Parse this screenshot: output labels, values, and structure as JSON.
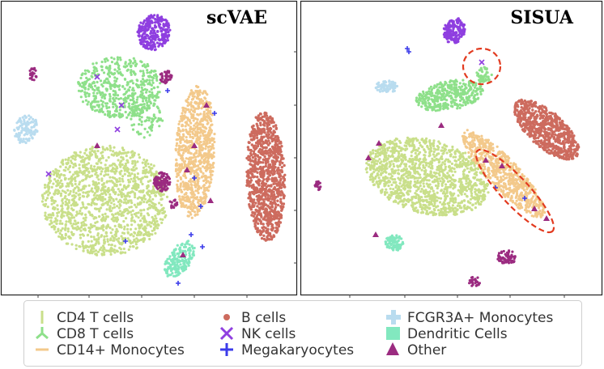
{
  "chart_data": {
    "type": "scatter",
    "panels": [
      {
        "title": "scVAE"
      },
      {
        "title": "SISUA"
      }
    ],
    "legend": {
      "placement": "bottom",
      "entries": [
        {
          "label": "CD4 T cells",
          "color": "#c9df8a",
          "marker": "vline"
        },
        {
          "label": "CD8 T cells",
          "color": "#8ee08a",
          "marker": "tri"
        },
        {
          "label": "CD14+ Monocytes",
          "color": "#f3c98b",
          "marker": "hline"
        },
        {
          "label": "B cells",
          "color": "#cd6b5e",
          "marker": "dot"
        },
        {
          "label": "NK cells",
          "color": "#8f3fe0",
          "marker": "x"
        },
        {
          "label": "Megakaryocytes",
          "color": "#3b3bea",
          "marker": "plus"
        },
        {
          "label": "FCGR3A+ Monocytes",
          "color": "#b9dcef",
          "marker": "pluswide"
        },
        {
          "label": "Dendritic Cells",
          "color": "#82e8bf",
          "marker": "square"
        },
        {
          "label": "Other",
          "color": "#9b2b80",
          "marker": "triangle"
        }
      ]
    }
  }
}
